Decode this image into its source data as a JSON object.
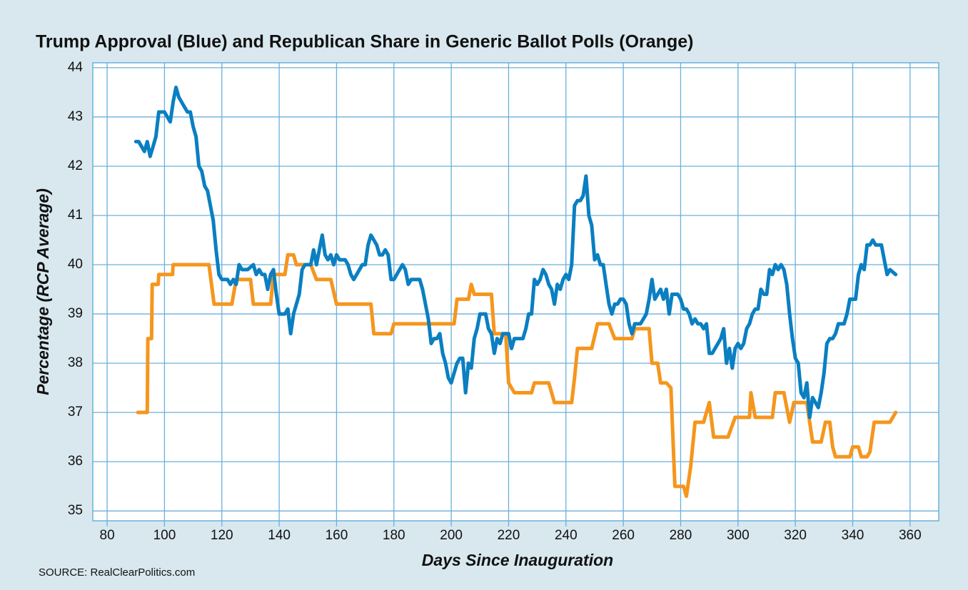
{
  "chart_data": {
    "type": "line",
    "title": "Trump Approval (Blue) and Republican Share in Generic Ballot Polls (Orange)",
    "x_label": "Days Since Inauguration",
    "y_label": "Percentage (RCP Average)",
    "source": "SOURCE: RealClearPolitics.com",
    "xlim": [
      75,
      370
    ],
    "ylim": [
      34.8,
      44.1
    ],
    "xticks": [
      80,
      100,
      120,
      140,
      160,
      180,
      200,
      220,
      240,
      260,
      280,
      300,
      320,
      340,
      360
    ],
    "yticks": [
      35,
      36,
      37,
      38,
      39,
      40,
      41,
      42,
      43,
      44
    ],
    "grid": true,
    "series": [
      {
        "color": "#0a7fc1",
        "x": [
          90,
          91,
          92,
          93,
          94,
          95,
          96,
          97,
          98,
          100,
          101,
          102,
          103,
          104,
          105,
          107,
          108,
          109,
          110,
          111,
          112,
          113,
          114,
          115,
          116,
          117,
          118,
          119,
          120,
          121,
          122,
          123,
          124,
          125,
          126,
          127,
          129,
          131,
          132,
          133,
          134,
          135,
          136,
          137,
          138,
          139,
          140,
          141,
          142,
          143,
          144,
          145,
          147,
          148,
          149,
          150,
          151,
          152,
          153,
          154,
          155,
          156,
          157,
          158,
          159,
          160,
          161,
          162,
          163,
          164,
          165,
          166,
          167,
          168,
          169,
          170,
          171,
          172,
          173,
          174,
          175,
          176,
          177,
          178,
          179,
          180,
          181,
          182,
          183,
          184,
          185,
          186,
          188,
          189,
          190,
          191,
          192,
          193,
          194,
          195,
          196,
          197,
          198,
          199,
          200,
          201,
          202,
          203,
          204,
          205,
          206,
          207,
          208,
          209,
          210,
          211,
          212,
          213,
          214,
          215,
          216,
          217,
          218,
          219,
          220,
          221,
          222,
          223,
          224,
          225,
          226,
          227,
          228,
          229,
          230,
          231,
          232,
          233,
          234,
          235,
          236,
          237,
          238,
          239,
          240,
          241,
          242,
          243,
          244,
          245,
          246,
          247,
          248,
          249,
          250,
          251,
          252,
          253,
          254,
          255,
          256,
          257,
          258,
          259,
          260,
          261,
          262,
          263,
          264,
          265,
          266,
          267,
          268,
          269,
          270,
          271,
          272,
          273,
          274,
          275,
          276,
          277,
          278,
          279,
          280,
          281,
          282,
          283,
          284,
          285,
          286,
          287,
          288,
          289,
          290,
          291,
          292,
          293,
          294,
          295,
          296,
          297,
          298,
          299,
          300,
          301,
          302,
          303,
          304,
          305,
          306,
          307,
          308,
          309,
          310,
          311,
          312,
          313,
          314,
          315,
          316,
          317,
          318,
          319,
          320,
          321,
          322,
          323,
          324,
          325,
          326,
          327,
          328,
          329,
          330,
          331,
          332,
          333,
          334,
          335,
          336,
          337,
          338,
          339,
          340,
          341,
          342,
          343,
          344,
          345,
          346,
          347,
          348,
          350,
          352,
          353,
          355
        ],
        "values": [
          42.5,
          42.5,
          42.4,
          42.3,
          42.5,
          42.2,
          42.4,
          42.6,
          43.1,
          43.1,
          43.0,
          42.9,
          43.3,
          43.6,
          43.4,
          43.2,
          43.1,
          43.1,
          42.8,
          42.6,
          42.0,
          41.9,
          41.6,
          41.5,
          41.2,
          40.9,
          40.3,
          39.8,
          39.7,
          39.7,
          39.7,
          39.6,
          39.7,
          39.6,
          40.0,
          39.9,
          39.9,
          40.0,
          39.8,
          39.9,
          39.8,
          39.8,
          39.5,
          39.8,
          39.9,
          39.4,
          39.0,
          39.0,
          39.0,
          39.1,
          38.6,
          39.0,
          39.4,
          39.9,
          40.0,
          40.0,
          40.0,
          40.3,
          40.0,
          40.3,
          40.6,
          40.2,
          40.1,
          40.2,
          40.0,
          40.2,
          40.1,
          40.1,
          40.1,
          40.0,
          39.8,
          39.7,
          39.8,
          39.9,
          40.0,
          40.0,
          40.4,
          40.6,
          40.5,
          40.4,
          40.2,
          40.2,
          40.3,
          40.2,
          39.7,
          39.7,
          39.8,
          39.9,
          40.0,
          39.9,
          39.6,
          39.7,
          39.7,
          39.7,
          39.5,
          39.2,
          38.9,
          38.4,
          38.5,
          38.5,
          38.6,
          38.2,
          38.0,
          37.7,
          37.6,
          37.8,
          38.0,
          38.1,
          38.1,
          37.4,
          38.0,
          37.9,
          38.5,
          38.7,
          39.0,
          39.0,
          39.0,
          38.7,
          38.6,
          38.2,
          38.5,
          38.4,
          38.6,
          38.6,
          38.6,
          38.3,
          38.5,
          38.5,
          38.5,
          38.5,
          38.7,
          39.0,
          39.0,
          39.7,
          39.6,
          39.7,
          39.9,
          39.8,
          39.6,
          39.5,
          39.2,
          39.6,
          39.5,
          39.7,
          39.8,
          39.7,
          40.0,
          41.2,
          41.3,
          41.3,
          41.4,
          41.8,
          41.0,
          40.8,
          40.1,
          40.2,
          40.0,
          40.0,
          39.6,
          39.2,
          39.0,
          39.2,
          39.2,
          39.3,
          39.3,
          39.2,
          38.8,
          38.6,
          38.8,
          38.8,
          38.8,
          38.9,
          39.0,
          39.3,
          39.7,
          39.3,
          39.4,
          39.5,
          39.3,
          39.5,
          39.0,
          39.4,
          39.4,
          39.4,
          39.3,
          39.1,
          39.1,
          39.0,
          38.8,
          38.9,
          38.8,
          38.8,
          38.7,
          38.8,
          38.2,
          38.2,
          38.3,
          38.4,
          38.5,
          38.7,
          38.0,
          38.3,
          37.9,
          38.3,
          38.4,
          38.3,
          38.4,
          38.7,
          38.8,
          39.0,
          39.1,
          39.1,
          39.5,
          39.4,
          39.4,
          39.9,
          39.8,
          40.0,
          39.9,
          40.0,
          39.9,
          39.6,
          39.0,
          38.5,
          38.1,
          38.0,
          37.4,
          37.3,
          37.6,
          36.9,
          37.3,
          37.2,
          37.1,
          37.4,
          37.8,
          38.4,
          38.5,
          38.5,
          38.6,
          38.8,
          38.8,
          38.8,
          39.0,
          39.3,
          39.3,
          39.3,
          39.8,
          40.0,
          39.9,
          40.4,
          40.4,
          40.5,
          40.4,
          40.4,
          39.8,
          39.9,
          39.8
        ]
      },
      {
        "color": "#f5961d",
        "x": [
          90.7,
          94,
          94.2,
          95.5,
          95.7,
          97.8,
          98,
          102.8,
          103,
          115.5,
          117.3,
          123.5,
          125,
          130,
          131,
          137,
          138,
          142,
          143,
          145,
          146,
          151,
          153,
          158,
          160,
          172,
          173,
          179,
          180,
          201,
          202,
          206,
          207,
          208,
          214,
          215,
          219,
          220,
          222,
          228,
          229,
          234,
          236,
          242,
          243,
          244,
          249,
          251,
          255,
          257,
          263,
          264,
          269,
          270,
          272,
          273,
          275,
          276.6,
          278,
          281,
          282,
          283.5,
          285,
          288,
          290,
          291.5,
          296.5,
          299,
          304,
          304.5,
          306,
          312,
          313,
          316,
          317,
          318,
          319.5,
          324,
          326,
          329,
          330.5,
          332,
          333,
          334,
          339,
          340,
          342,
          343,
          345,
          346,
          347.5,
          353,
          355
        ],
        "values": [
          37.0,
          37.0,
          38.5,
          38.5,
          39.6,
          39.6,
          39.8,
          39.8,
          40.0,
          40.0,
          39.2,
          39.2,
          39.7,
          39.7,
          39.2,
          39.2,
          39.8,
          39.8,
          40.2,
          40.2,
          40.0,
          40.0,
          39.7,
          39.7,
          39.2,
          39.2,
          38.6,
          38.6,
          38.8,
          38.8,
          39.3,
          39.3,
          39.6,
          39.4,
          39.4,
          38.6,
          38.6,
          37.6,
          37.4,
          37.4,
          37.6,
          37.6,
          37.2,
          37.2,
          37.7,
          38.3,
          38.3,
          38.8,
          38.8,
          38.5,
          38.5,
          38.7,
          38.7,
          38.0,
          38.0,
          37.6,
          37.6,
          37.5,
          35.5,
          35.5,
          35.3,
          35.9,
          36.8,
          36.8,
          37.2,
          36.5,
          36.5,
          36.9,
          36.9,
          37.4,
          36.9,
          36.9,
          37.4,
          37.4,
          37.1,
          36.8,
          37.2,
          37.2,
          36.4,
          36.4,
          36.8,
          36.8,
          36.3,
          36.1,
          36.1,
          36.3,
          36.3,
          36.1,
          36.1,
          36.2,
          36.8,
          36.8,
          37.0
        ]
      }
    ]
  }
}
